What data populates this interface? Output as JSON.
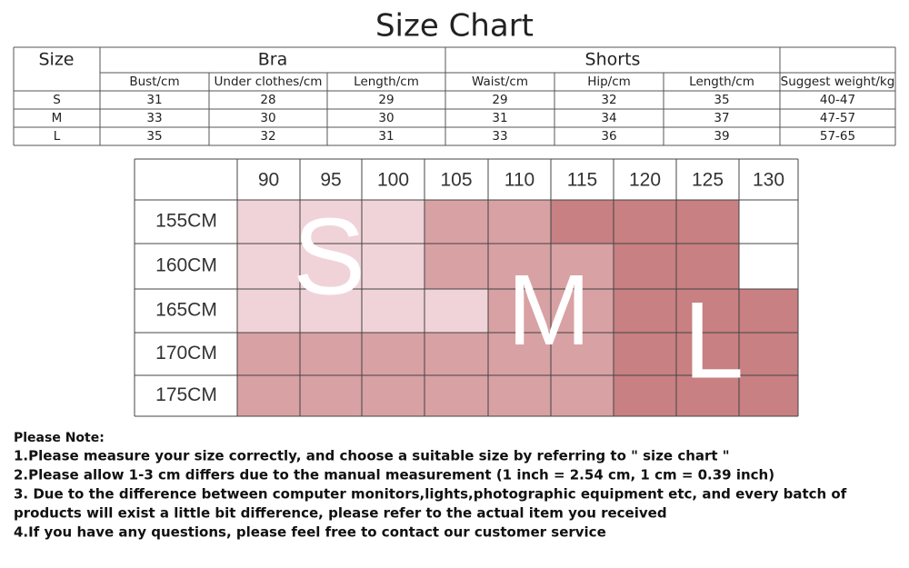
{
  "title": "Size Chart",
  "size_table": {
    "groups": [
      "Size",
      "Bra",
      "Shorts"
    ],
    "columns": [
      "Bust/cm",
      "Under clothes/cm",
      "Length/cm",
      "Waist/cm",
      "Hip/cm",
      "Length/cm",
      "Suggest weight/kg"
    ],
    "rows": [
      [
        "S",
        "31",
        "28",
        "29",
        "29",
        "32",
        "35",
        "40-47"
      ],
      [
        "M",
        "33",
        "30",
        "30",
        "31",
        "34",
        "37",
        "47-57"
      ],
      [
        "L",
        "35",
        "32",
        "31",
        "33",
        "36",
        "39",
        "57-65"
      ]
    ]
  },
  "fit_grid": {
    "columns": [
      "90",
      "95",
      "100",
      "105",
      "110",
      "115",
      "120",
      "125",
      "130"
    ],
    "rows": [
      "155CM",
      "160CM",
      "165CM",
      "170CM",
      "175CM"
    ],
    "letters": [
      "S",
      "M",
      "L"
    ]
  },
  "notes": {
    "heading": "Please Note:",
    "items": [
      "1.Please measure your size correctly, and choose a suitable size by referring to \" size chart \"",
      "2.Please allow 1-3 cm differs due to the manual measurement (1 inch = 2.54 cm, 1 cm = 0.39 inch)",
      "3. Due to the difference between computer monitors,lights,photographic equipment etc, and every batch of",
      "products will exist a little bit difference, please refer to the actual item you received",
      "4.If you have any questions, please feel free to contact our customer service"
    ]
  }
}
